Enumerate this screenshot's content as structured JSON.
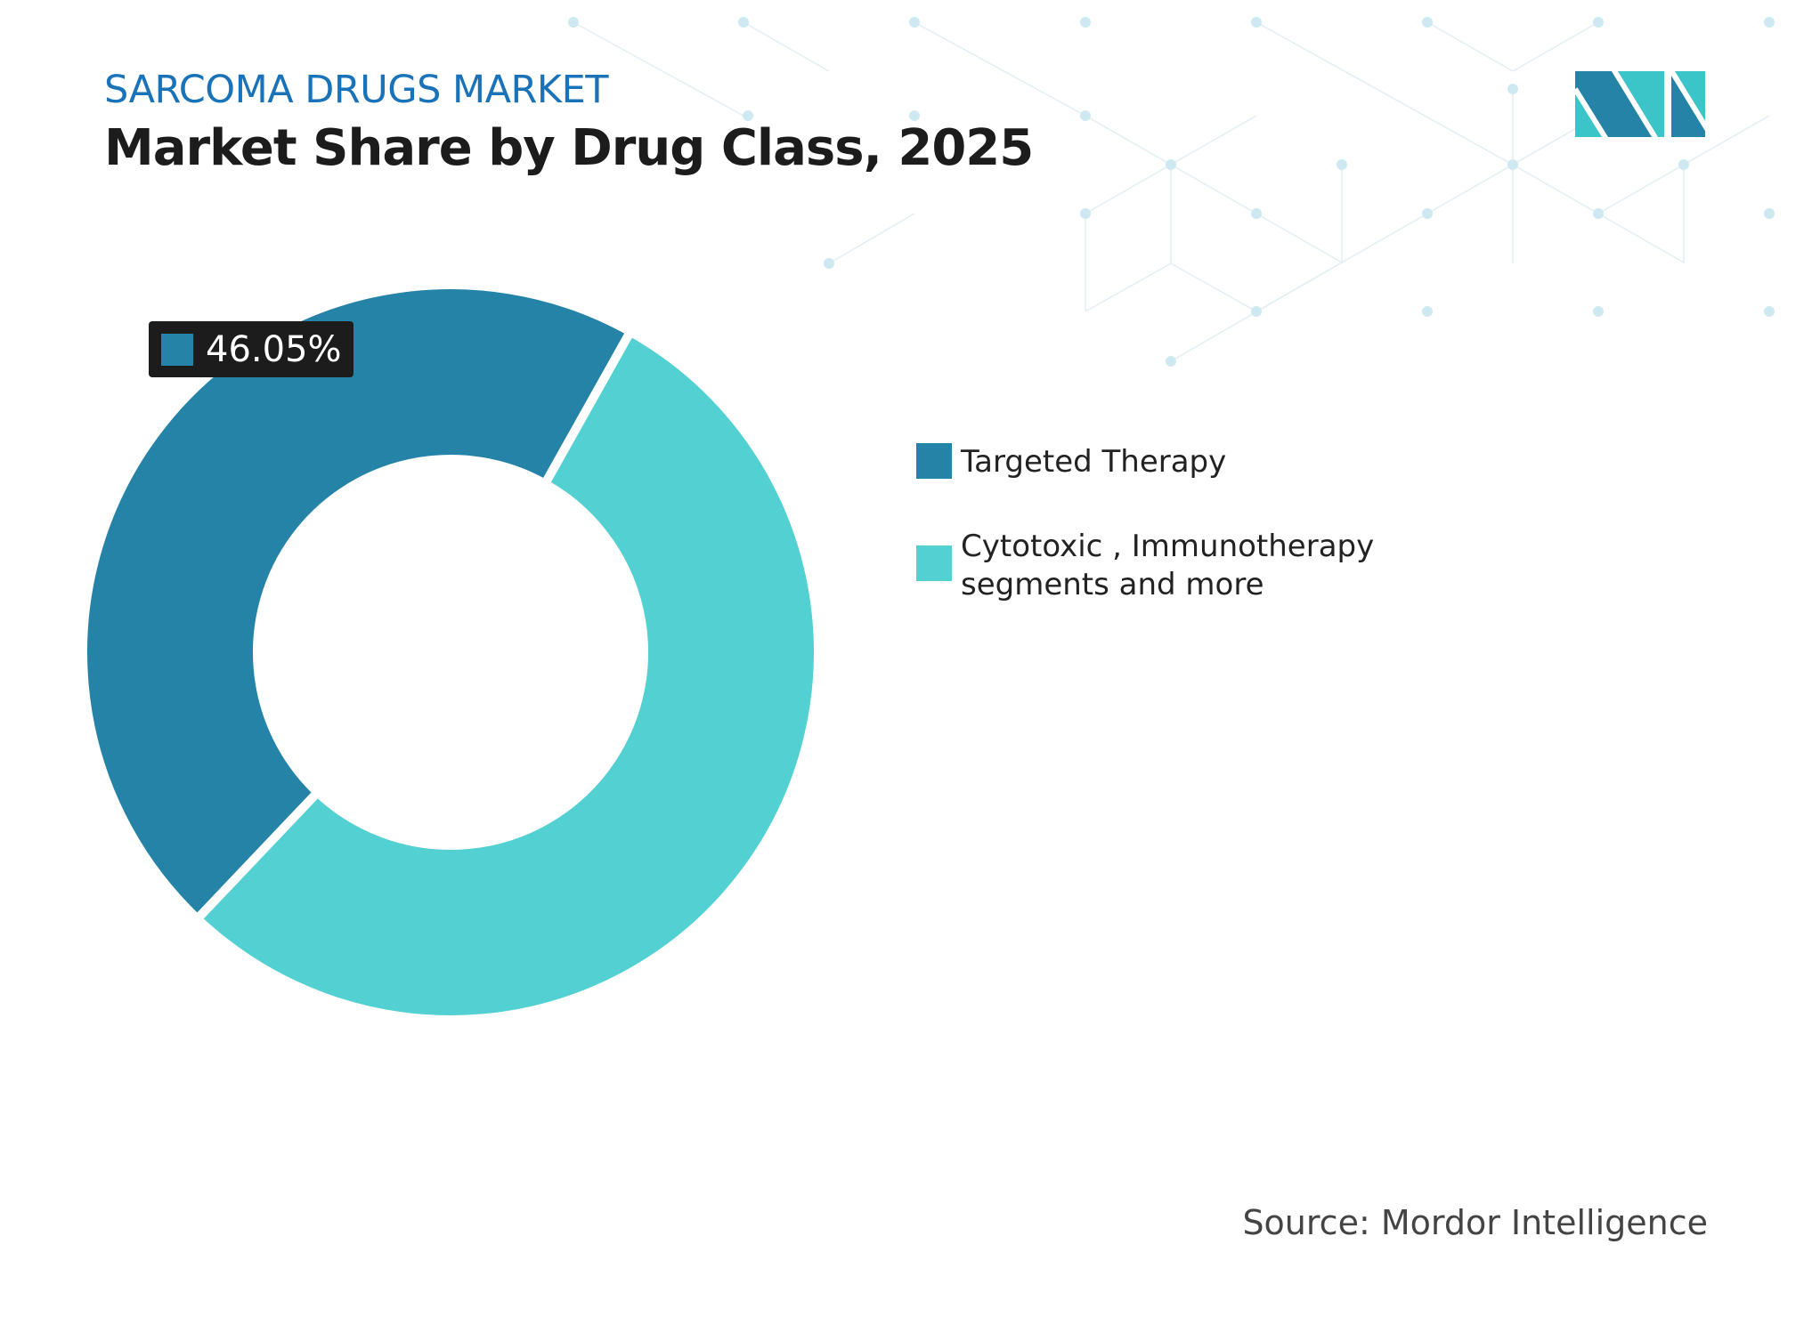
{
  "header": {
    "kicker": "SARCOMA DRUGS MARKET",
    "title": "Market Share by Drug Class, 2025"
  },
  "chart_data": {
    "type": "pie",
    "donut": true,
    "categories": [
      "Targeted Therapy",
      "Cytotoxic , Immunotherapy segments and more"
    ],
    "values": [
      46.05,
      53.95
    ],
    "colors": [
      "#2683a8",
      "#52d0d2"
    ],
    "data_labels": [
      {
        "category": "Targeted Therapy",
        "text": "46.05%"
      }
    ],
    "legend_position": "right"
  },
  "legend": {
    "items": [
      {
        "label": "Targeted Therapy",
        "color": "#2683a8"
      },
      {
        "label": "Cytotoxic , Immunotherapy\nsegments and more",
        "color": "#52d0d2"
      }
    ]
  },
  "data_label": "46.05%",
  "source": "Source: Mordor Intelligence",
  "logo": {
    "text": "Mordor Intelligence",
    "colors": [
      "#2683a8",
      "#3cc5c8"
    ]
  }
}
